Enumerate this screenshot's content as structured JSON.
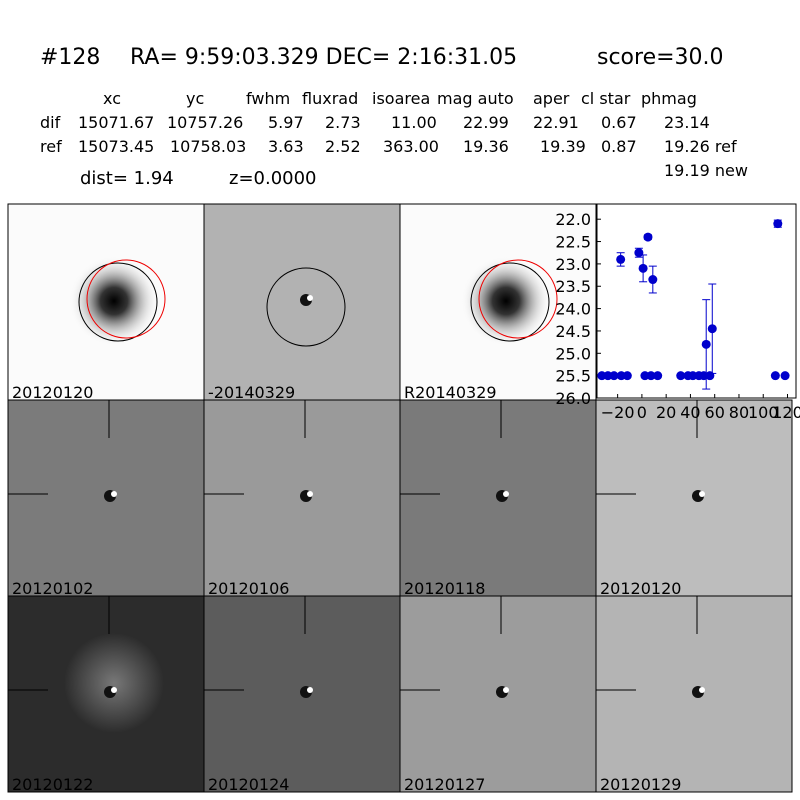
{
  "header": {
    "id": "#128",
    "coords": "RA= 9:59:03.329 DEC= 2:16:31.05",
    "score": "score=30.0"
  },
  "table": {
    "columns": [
      "xc",
      "yc",
      "fwhm",
      "fluxrad",
      "isoarea",
      "mag auto",
      "aper",
      "cl star",
      "phmag"
    ],
    "rows": [
      {
        "label": "dif",
        "cells": [
          "15071.67",
          "10757.26",
          "5.97",
          "2.73",
          "11.00",
          "22.99",
          "22.91",
          "0.67",
          "23.14"
        ]
      },
      {
        "label": "ref",
        "cells": [
          "15073.45",
          "10758.03",
          "3.63",
          "2.52",
          "363.00",
          "19.36",
          "19.39",
          "0.87",
          "19.26 ref"
        ]
      }
    ],
    "extra": "19.19 new"
  },
  "dist": "dist=  1.94",
  "z": "z=0.0000",
  "panels": [
    {
      "label": "20120120"
    },
    {
      "label": "-20140329"
    },
    {
      "label": "R20140329"
    },
    {
      "label": "20120102"
    },
    {
      "label": "20120106"
    },
    {
      "label": "20120118"
    },
    {
      "label": "20120120",
      "color": "#ff0000"
    },
    {
      "label": "20120122"
    },
    {
      "label": "20120124"
    },
    {
      "label": "20120127"
    },
    {
      "label": "20120129"
    }
  ],
  "chart_data": {
    "type": "scatter",
    "color": "#0000cc",
    "x": [
      -33,
      -28,
      -23,
      -17,
      -12,
      2.5,
      7.5,
      13,
      32,
      38,
      42,
      47,
      51,
      56,
      110,
      118,
      -17.5,
      -2.5,
      1,
      5,
      9,
      53,
      58,
      112
    ],
    "values": [
      25.5,
      25.5,
      25.5,
      25.5,
      25.5,
      25.5,
      25.5,
      25.5,
      25.5,
      25.5,
      25.5,
      25.5,
      25.5,
      25.5,
      25.5,
      25.5,
      22.9,
      22.75,
      23.1,
      22.4,
      23.35,
      24.8,
      24.45,
      22.1
    ],
    "errors": [
      0,
      0,
      0,
      0,
      0,
      0,
      0,
      0,
      0,
      0,
      0,
      0,
      0,
      0,
      0,
      0,
      0.15,
      0.1,
      0.3,
      0.05,
      0.3,
      1.0,
      1.0,
      0.08
    ],
    "xlim": [
      -37,
      127
    ],
    "ylim": [
      26.0,
      21.66
    ],
    "xticks": [
      {
        "value": -20,
        "label": "−20"
      },
      0,
      20,
      40,
      60,
      80,
      100,
      120
    ],
    "yticks": [
      {
        "value": 22,
        "label": "22.0"
      },
      {
        "value": 22.5,
        "label": "22.5"
      },
      {
        "value": 23,
        "label": "23.0"
      },
      {
        "value": 23.5,
        "label": "23.5"
      },
      {
        "value": 24,
        "label": "24.0"
      },
      {
        "value": 24.5,
        "label": "24.5"
      },
      {
        "value": 25,
        "label": "25.0"
      },
      {
        "value": 25.5,
        "label": "25.5"
      },
      {
        "value": 26,
        "label": "26.0"
      }
    ]
  }
}
